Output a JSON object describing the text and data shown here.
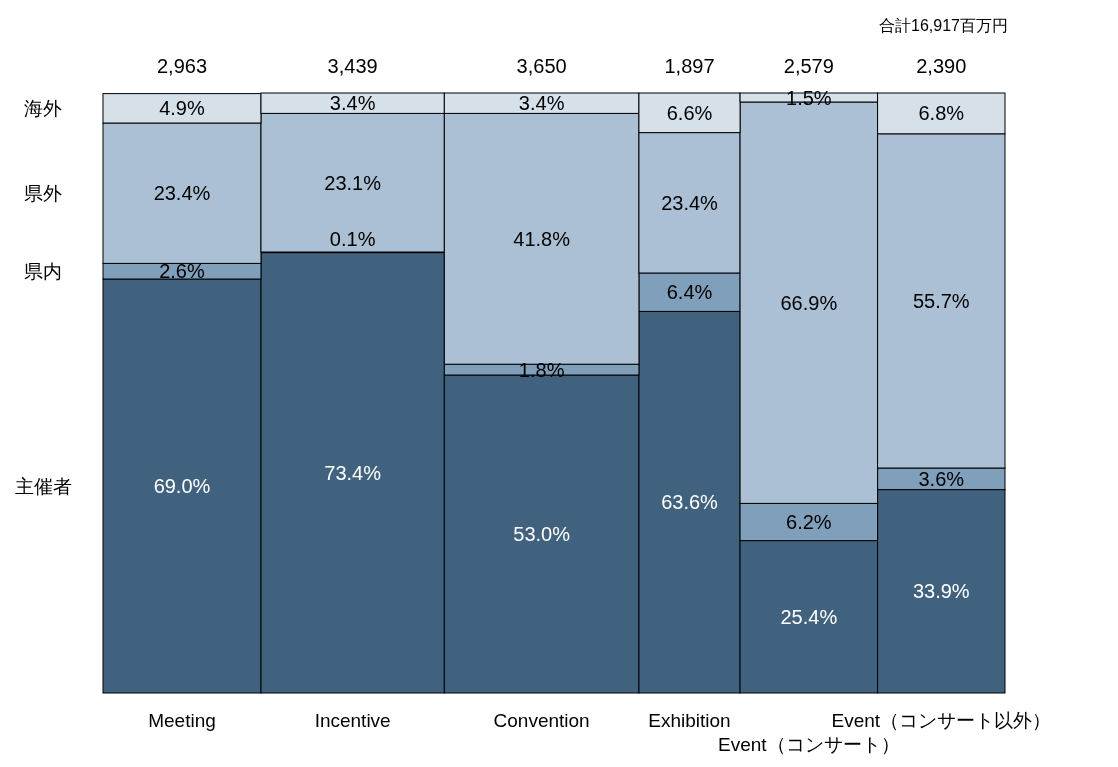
{
  "chart_data": {
    "type": "bar",
    "stacked": true,
    "categories": [
      "Meeting",
      "Incentive",
      "Convention",
      "Exhibition",
      "Event（コンサート）",
      "Event（コンサート以外）"
    ],
    "series": [
      {
        "name": "主催者",
        "color": "#41627f",
        "values": [
          69.0,
          73.4,
          53.0,
          63.6,
          25.4,
          33.9
        ],
        "value_labels": [
          "69.0%",
          "73.4%",
          "53.0%",
          "63.6%",
          "25.4%",
          "33.9%"
        ]
      },
      {
        "name": "県内",
        "color": "#7f9fbb",
        "values": [
          2.6,
          0.1,
          1.8,
          6.4,
          6.2,
          3.6
        ],
        "value_labels": [
          "2.6%",
          "0.1%",
          "1.8%",
          "6.4%",
          "6.2%",
          "3.6%"
        ]
      },
      {
        "name": "県外",
        "color": "#abc0d4",
        "values": [
          23.4,
          23.1,
          41.8,
          23.4,
          66.9,
          55.7
        ],
        "value_labels": [
          "23.4%",
          "23.1%",
          "41.8%",
          "23.4%",
          "66.9%",
          "55.7%"
        ]
      },
      {
        "name": "海外",
        "color": "#d5e0e9",
        "values": [
          4.9,
          3.4,
          3.4,
          6.6,
          1.5,
          6.8
        ],
        "value_labels": [
          "4.9%",
          "3.4%",
          "3.4%",
          "6.6%",
          "1.5%",
          "6.8%"
        ]
      }
    ],
    "annotations": [
      "2,963",
      "3,439",
      "3,650",
      "1,897",
      "2,579",
      "2,390",
      "合計16,917百万円"
    ],
    "legend": false,
    "grid": false
  }
}
